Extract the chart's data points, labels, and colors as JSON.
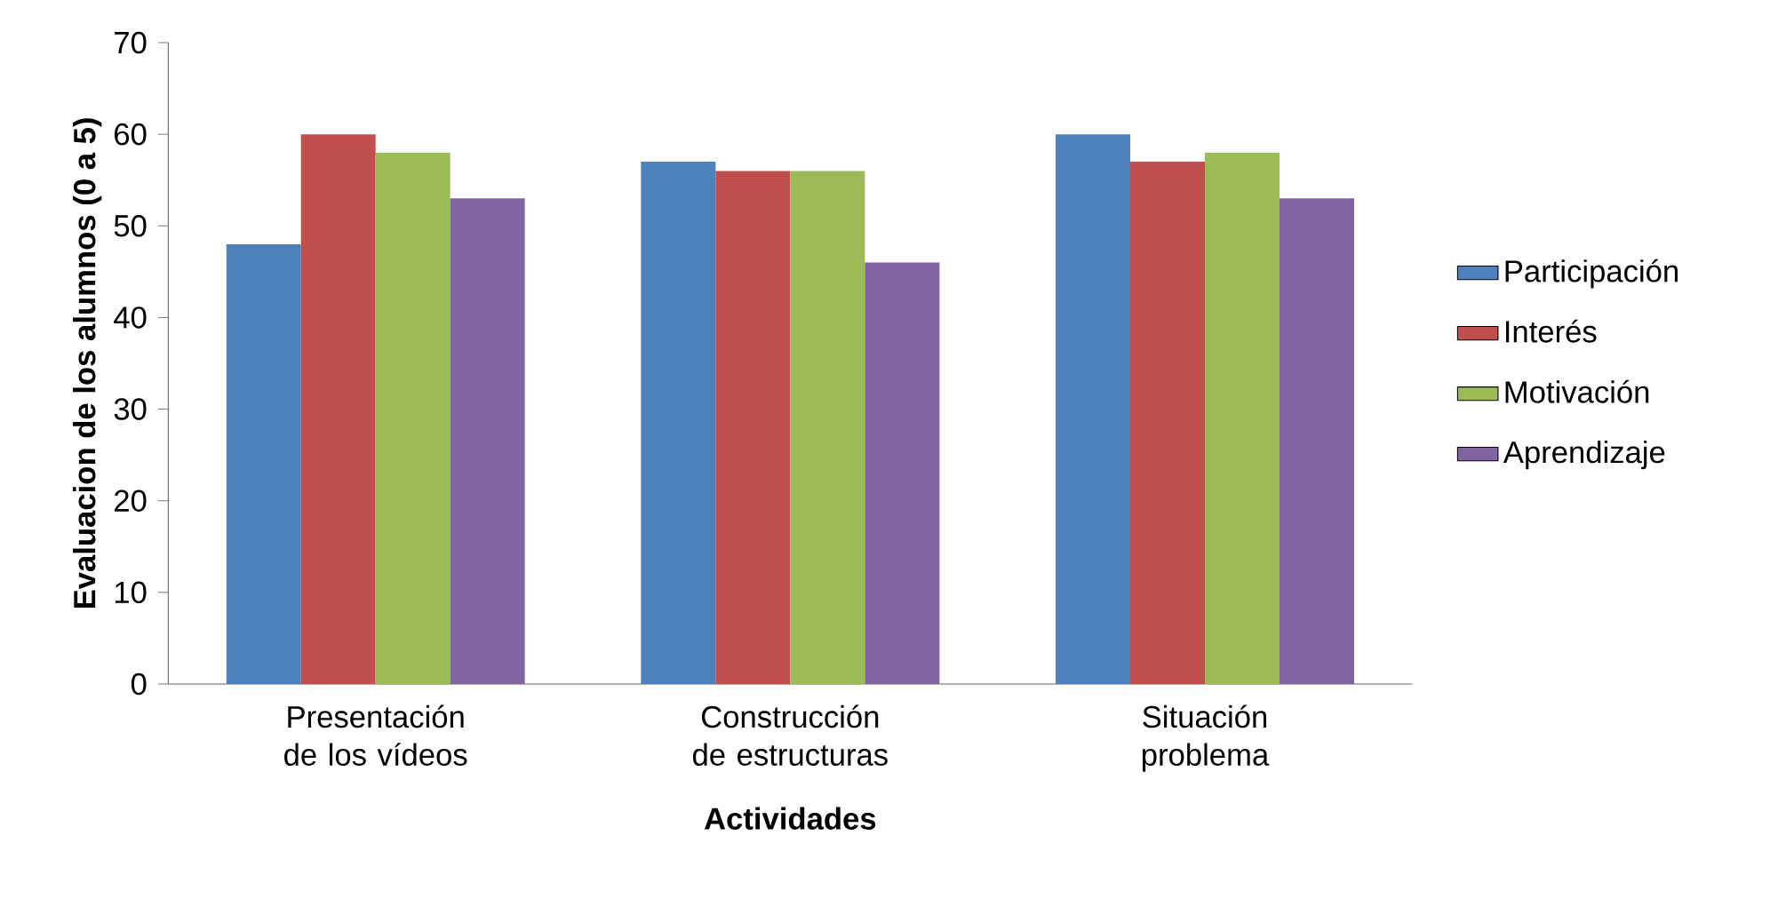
{
  "chart_data": {
    "type": "bar",
    "xlabel": "Actividades",
    "ylabel": "Evaluacion de los alumnos (0 a 5)",
    "categories": [
      "Presentación de los vídeos",
      "Construcción de estructuras",
      "Situación problema"
    ],
    "series": [
      {
        "name": "Participación",
        "color": "#4f81bd",
        "values": [
          48,
          57,
          60
        ]
      },
      {
        "name": "Interés",
        "color": "#c0504d",
        "values": [
          60,
          56,
          57
        ]
      },
      {
        "name": "Motivación",
        "color": "#9bbb59",
        "values": [
          58,
          56,
          58
        ]
      },
      {
        "name": "Aprendizaje",
        "color": "#8064a2",
        "values": [
          53,
          46,
          53
        ]
      }
    ],
    "ylim": [
      0,
      70
    ],
    "yticks": [
      0,
      10,
      20,
      30,
      40,
      50,
      60,
      70
    ],
    "legend": "right"
  }
}
